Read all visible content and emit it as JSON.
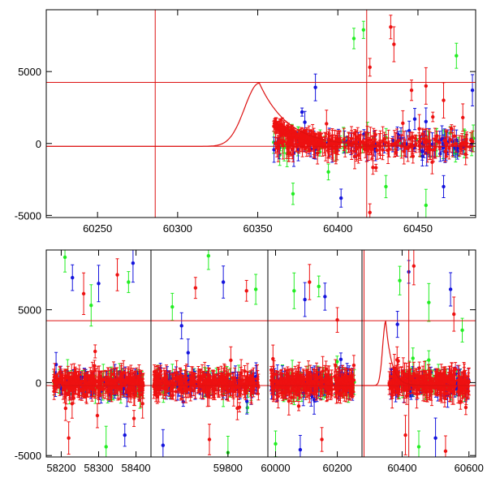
{
  "chart_data": [
    {
      "type": "scatter",
      "title": "",
      "xlabel": "",
      "ylabel": "",
      "xlim": [
        60218,
        60486
      ],
      "ylim": [
        -5150,
        9300
      ],
      "x_ticks": [
        60250,
        60300,
        60350,
        60400,
        60450
      ],
      "y_ticks": [
        -5000,
        0,
        5000
      ],
      "grid": false,
      "marker_colors": {
        "green": "#22ee22",
        "blue": "#1414dd",
        "red": "#ee1111"
      },
      "curve": {
        "kind": "peak",
        "peak_x": 60351,
        "peak_y": 4200,
        "baseline_y": -200,
        "color": "#dd1111"
      },
      "reference_lines": {
        "vertical_x": [
          60286,
          60418
        ],
        "horizontal_y": [
          4250,
          -200
        ],
        "color": "#dd1111"
      },
      "series": [
        {
          "color": "green",
          "x_range": [
            60360,
            60485
          ],
          "scatter_points": 150,
          "outliers": [
            [
              60410,
              7300
            ],
            [
              60416,
              7900
            ],
            [
              60474,
              6100
            ],
            [
              60372,
              -3500
            ],
            [
              60430,
              -3000
            ],
            [
              60455,
              -4300
            ]
          ]
        },
        {
          "color": "blue",
          "x_range": [
            60360,
            60485
          ],
          "scatter_points": 180,
          "outliers": [
            [
              60386,
              3900
            ],
            [
              60402,
              -3800
            ],
            [
              60448,
              1700
            ],
            [
              60466,
              -3000
            ],
            [
              60484,
              3700
            ]
          ]
        },
        {
          "color": "red",
          "x_range": [
            60360,
            60485
          ],
          "scatter_points": 380,
          "outliers": [
            [
              60420,
              5300
            ],
            [
              60433,
              8100
            ],
            [
              60435,
              6900
            ],
            [
              60446,
              3700
            ],
            [
              60455,
              4000
            ],
            [
              60466,
              3000
            ],
            [
              60478,
              1800
            ],
            [
              60420,
              -4800
            ]
          ]
        }
      ]
    },
    {
      "type": "scatter",
      "title": "",
      "xlabel": "",
      "ylabel": "",
      "broken_x_axis": true,
      "ylim": [
        -5100,
        9100
      ],
      "y_ticks": [
        -5000,
        0,
        5000
      ],
      "grid": false,
      "marker_colors": {
        "green": "#22ee22",
        "blue": "#1414dd",
        "red": "#ee1111"
      },
      "curve": {
        "kind": "peak",
        "peak_x": 60351,
        "peak_y": 4200,
        "baseline_y": -200,
        "color": "#dd1111"
      },
      "reference_lines": {
        "vertical_x": [
          60286,
          60420
        ],
        "horizontal_y": [
          4250,
          -200
        ],
        "color": "#dd1111"
      },
      "segments": [
        {
          "xlim": [
            58160,
            58440
          ],
          "x_ticks": [
            58200,
            58300,
            58400
          ],
          "tick_labels": [
            "58200",
            "58300",
            "58400"
          ],
          "data_x_range": [
            58180,
            58420
          ],
          "outliers": [
            [
              58210,
              8600
            ],
            [
              58230,
              7200
            ],
            [
              58260,
              6100
            ],
            [
              58280,
              5300
            ],
            [
              58300,
              6800
            ],
            [
              58350,
              7400
            ],
            [
              58380,
              6900
            ],
            [
              58392,
              8200
            ],
            [
              58220,
              -3800
            ],
            [
              58320,
              -4400
            ],
            [
              58370,
              -3600
            ]
          ]
        },
        {
          "xlim": [
            59634,
            59886
          ],
          "x_ticks": [
            59800
          ],
          "tick_labels": [
            "59800"
          ],
          "data_x_range": [
            59640,
            59870
          ],
          "outliers": [
            [
              59680,
              5200
            ],
            [
              59700,
              3900
            ],
            [
              59730,
              6500
            ],
            [
              59758,
              8700
            ],
            [
              59790,
              6900
            ],
            [
              59840,
              6300
            ],
            [
              59860,
              6400
            ],
            [
              59660,
              -4300
            ],
            [
              59760,
              -3900
            ],
            [
              59800,
              -4800
            ]
          ]
        },
        {
          "xlim": [
            59975,
            60280
          ],
          "x_ticks": [
            60000,
            60200
          ],
          "tick_labels": [
            "60000",
            "60200"
          ],
          "data_x_range": [
            59985,
            60255
          ],
          "outliers": [
            [
              60060,
              6300
            ],
            [
              60095,
              5700
            ],
            [
              60110,
              6900
            ],
            [
              60140,
              6600
            ],
            [
              60160,
              5900
            ],
            [
              60200,
              4300
            ],
            [
              60000,
              -4200
            ],
            [
              60080,
              -4600
            ],
            [
              60150,
              -3900
            ]
          ]
        },
        {
          "xlim": [
            60280,
            60620
          ],
          "x_ticks": [
            60400,
            60600
          ],
          "tick_labels": [
            "60400",
            "60600"
          ],
          "data_x_range": [
            60360,
            60600
          ],
          "outliers": [
            [
              60393,
              7000
            ],
            [
              60420,
              7600
            ],
            [
              60435,
              8000
            ],
            [
              60480,
              5500
            ],
            [
              60545,
              6400
            ],
            [
              60555,
              4700
            ],
            [
              60580,
              3600
            ],
            [
              60386,
              4000
            ],
            [
              60410,
              -3600
            ],
            [
              60450,
              -4400
            ],
            [
              60500,
              -3800
            ],
            [
              60530,
              -4700
            ]
          ]
        }
      ]
    }
  ]
}
